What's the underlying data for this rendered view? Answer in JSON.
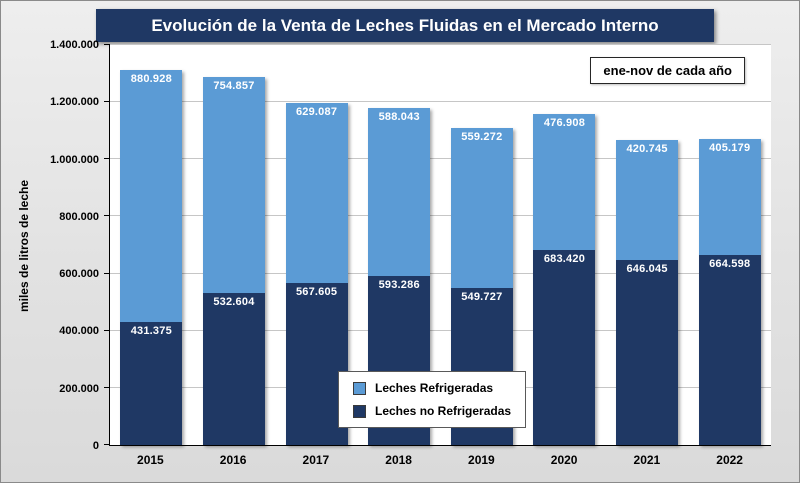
{
  "title": "Evolución de la Venta de Leches Fluidas en el Mercado Interno",
  "annotation": "ene-nov de cada año",
  "y_axis_title": "miles de litros de leche",
  "chart_data": {
    "type": "bar",
    "stacked": true,
    "title": "Evolución de la Venta de Leches Fluidas en el Mercado Interno",
    "subtitle": "ene-nov de cada año",
    "xlabel": "",
    "ylabel": "miles de litros de leche",
    "categories": [
      "2015",
      "2016",
      "2017",
      "2018",
      "2019",
      "2020",
      "2021",
      "2022"
    ],
    "series": [
      {
        "name": "Leches no Refrigeradas",
        "color": "#1F3864",
        "stack_position": "bottom",
        "values": [
          431375,
          532604,
          567605,
          593286,
          549727,
          683420,
          646045,
          664598
        ]
      },
      {
        "name": "Leches Refrigeradas",
        "color": "#5B9BD5",
        "stack_position": "top",
        "values": [
          880928,
          754857,
          629087,
          588043,
          559272,
          476908,
          420745,
          405179
        ]
      }
    ],
    "ylim": [
      0,
      1400000
    ],
    "ytick_interval": 200000,
    "grid": true,
    "legend_position": "inside-lower-center",
    "legend": [
      {
        "label": "Leches Refrigeradas",
        "color": "#5B9BD5"
      },
      {
        "label": "Leches no Refrigeradas",
        "color": "#1F3864"
      }
    ]
  }
}
